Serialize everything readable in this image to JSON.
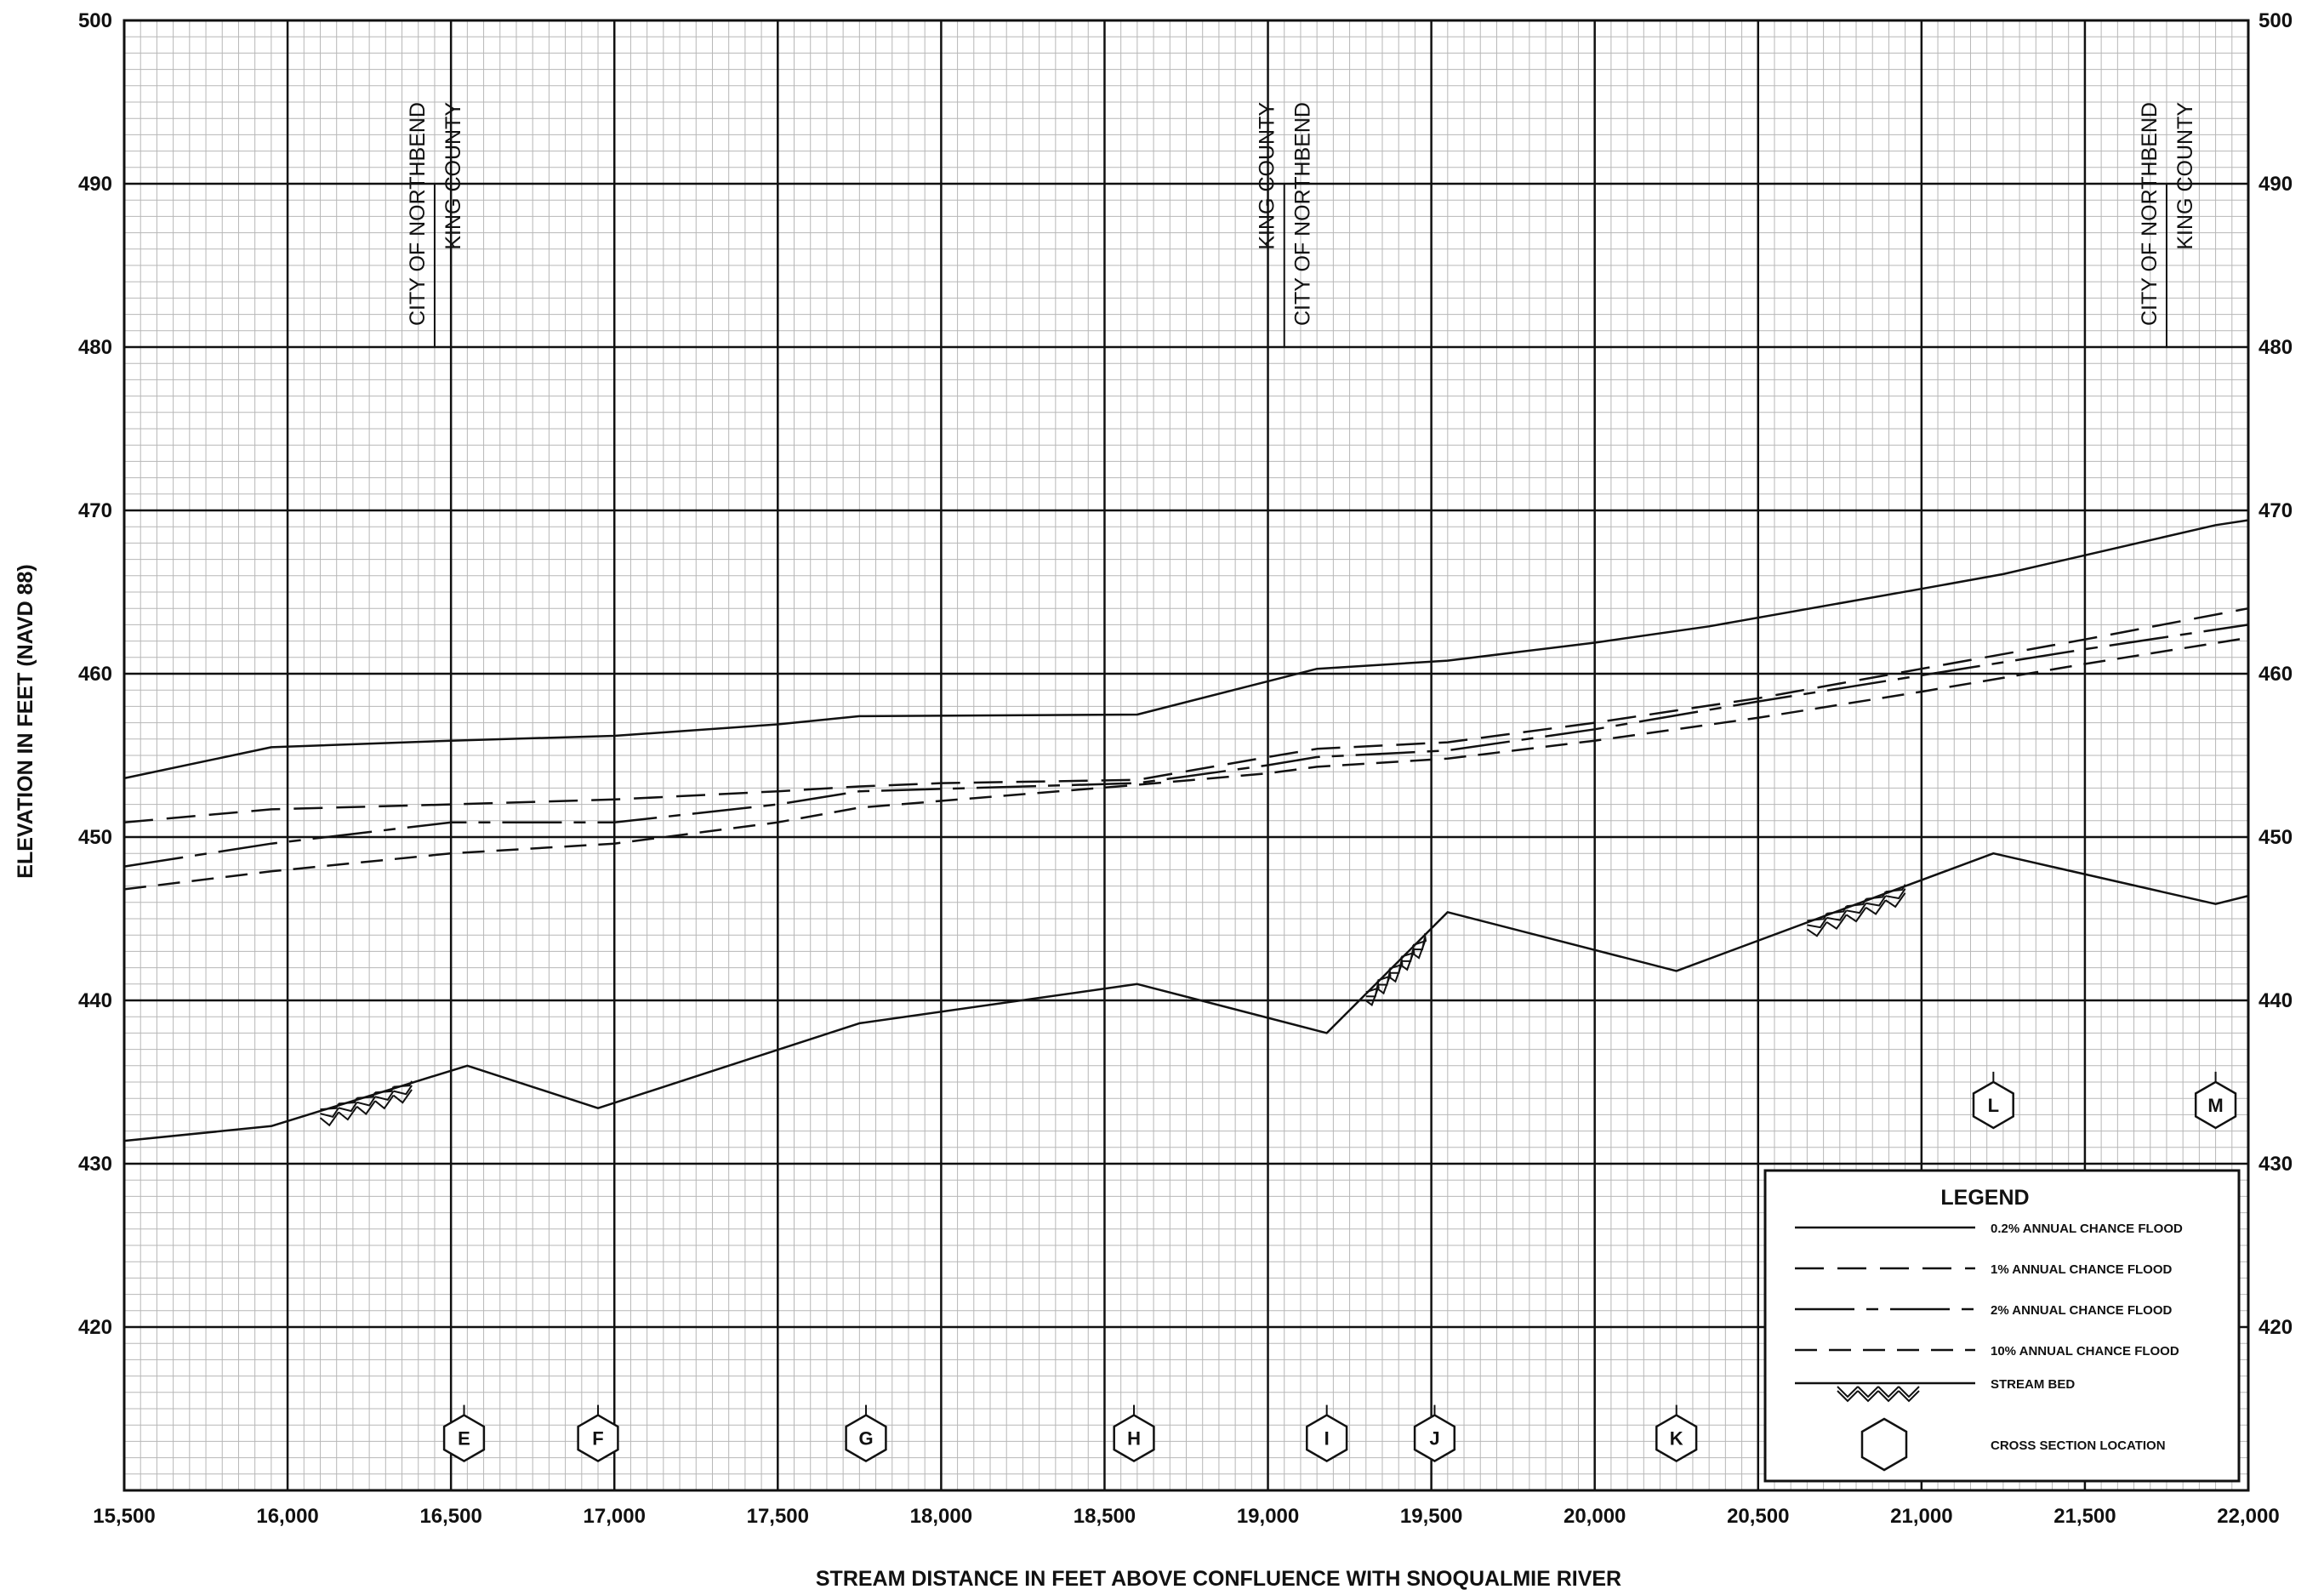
{
  "chart_data": {
    "type": "line",
    "title": "",
    "xlabel": "STREAM DISTANCE IN FEET ABOVE CONFLUENCE WITH SNOQUALMIE RIVER",
    "ylabel": "ELEVATION IN FEET (NAVD 88)",
    "xlim": [
      15500,
      22000
    ],
    "ylim": [
      410,
      500
    ],
    "grid": true,
    "x_ticks": [
      "15,500",
      "16,000",
      "16,500",
      "17,000",
      "17,500",
      "18,000",
      "18,500",
      "19,000",
      "19,500",
      "20,000",
      "20,500",
      "21,000",
      "21,500",
      "22,000"
    ],
    "y_ticks": [
      "420",
      "430",
      "440",
      "450",
      "460",
      "470",
      "480",
      "490",
      "500"
    ],
    "series": [
      {
        "name": "0.2% ANNUAL CHANCE FLOOD",
        "style": "solid",
        "points": [
          [
            15500,
            453.6
          ],
          [
            15950,
            455.5
          ],
          [
            16500,
            455.9
          ],
          [
            17000,
            456.2
          ],
          [
            17500,
            456.9
          ],
          [
            17750,
            457.4
          ],
          [
            18600,
            457.5
          ],
          [
            19150,
            460.3
          ],
          [
            19550,
            460.8
          ],
          [
            20000,
            461.9
          ],
          [
            20350,
            462.9
          ],
          [
            21000,
            465.2
          ],
          [
            21250,
            466.1
          ],
          [
            21900,
            469.1
          ],
          [
            22000,
            469.4
          ]
        ]
      },
      {
        "name": "1% ANNUAL CHANCE FLOOD",
        "style": "dashed",
        "points": [
          [
            15500,
            450.9
          ],
          [
            15950,
            451.7
          ],
          [
            16500,
            452.0
          ],
          [
            17000,
            452.3
          ],
          [
            17500,
            452.8
          ],
          [
            17750,
            453.1
          ],
          [
            18000,
            453.3
          ],
          [
            18600,
            453.5
          ],
          [
            19000,
            454.9
          ],
          [
            19150,
            455.4
          ],
          [
            19550,
            455.8
          ],
          [
            20000,
            457.0
          ],
          [
            20500,
            458.5
          ],
          [
            21000,
            460.3
          ],
          [
            21500,
            462.1
          ],
          [
            22000,
            464.0
          ]
        ]
      },
      {
        "name": "2% ANNUAL CHANCE FLOOD",
        "style": "dashdot",
        "points": [
          [
            15500,
            448.2
          ],
          [
            15950,
            449.6
          ],
          [
            16500,
            450.9
          ],
          [
            17000,
            450.9
          ],
          [
            17500,
            452.0
          ],
          [
            17750,
            452.8
          ],
          [
            18600,
            453.3
          ],
          [
            19000,
            454.4
          ],
          [
            19150,
            454.9
          ],
          [
            19550,
            455.3
          ],
          [
            20000,
            456.6
          ],
          [
            20500,
            458.3
          ],
          [
            21000,
            459.9
          ],
          [
            21500,
            461.5
          ],
          [
            22000,
            463.0
          ]
        ]
      },
      {
        "name": "10% ANNUAL CHANCE FLOOD",
        "style": "dashed-short",
        "points": [
          [
            15500,
            446.8
          ],
          [
            15950,
            447.9
          ],
          [
            16500,
            449.0
          ],
          [
            17000,
            449.6
          ],
          [
            17500,
            450.9
          ],
          [
            17750,
            451.8
          ],
          [
            18600,
            453.2
          ],
          [
            19000,
            453.9
          ],
          [
            19150,
            454.3
          ],
          [
            19550,
            454.8
          ],
          [
            20000,
            455.9
          ],
          [
            20500,
            457.3
          ],
          [
            21000,
            458.9
          ],
          [
            21500,
            460.6
          ],
          [
            22000,
            462.2
          ]
        ]
      },
      {
        "name": "STREAM BED",
        "style": "solid",
        "points": [
          [
            15500,
            431.4
          ],
          [
            15950,
            432.3
          ],
          [
            16550,
            436.0
          ],
          [
            16950,
            433.4
          ],
          [
            17750,
            438.6
          ],
          [
            18600,
            441.0
          ],
          [
            19180,
            438.0
          ],
          [
            19550,
            445.4
          ],
          [
            20250,
            441.8
          ],
          [
            21220,
            449.0
          ],
          [
            21900,
            445.9
          ],
          [
            22000,
            446.4
          ]
        ]
      }
    ],
    "stream_bed_hatches": [
      {
        "x1": 16100,
        "x2": 16380
      },
      {
        "x1": 19300,
        "x2": 19480
      },
      {
        "x1": 20650,
        "x2": 20950
      }
    ],
    "cross_sections": [
      {
        "label": "E",
        "x": 16540,
        "y": 413.2
      },
      {
        "label": "F",
        "x": 16950,
        "y": 413.2
      },
      {
        "label": "G",
        "x": 17770,
        "y": 413.2
      },
      {
        "label": "H",
        "x": 18590,
        "y": 413.2
      },
      {
        "label": "I",
        "x": 19180,
        "y": 413.2
      },
      {
        "label": "J",
        "x": 19510,
        "y": 413.2
      },
      {
        "label": "K",
        "x": 20250,
        "y": 413.2
      },
      {
        "label": "L",
        "x": 21220,
        "y": 433.6
      },
      {
        "label": "M",
        "x": 21900,
        "y": 433.6
      }
    ],
    "boundaries": [
      {
        "x": 16450,
        "left": "CITY OF NORTHBEND",
        "right": "KING COUNTY"
      },
      {
        "x": 19050,
        "left": "KING COUNTY",
        "right": "CITY OF NORTHBEND"
      },
      {
        "x": 21750,
        "left": "CITY OF NORTHBEND",
        "right": "KING COUNTY"
      }
    ],
    "legend": {
      "title": "LEGEND",
      "placement": "bottom-right",
      "items": [
        {
          "label": "0.2% ANNUAL CHANCE FLOOD",
          "symbol": "solid"
        },
        {
          "label": "1% ANNUAL CHANCE FLOOD",
          "symbol": "dashed"
        },
        {
          "label": "2% ANNUAL CHANCE FLOOD",
          "symbol": "dashdot"
        },
        {
          "label": "10% ANNUAL CHANCE FLOOD",
          "symbol": "dashed-short"
        },
        {
          "label": "STREAM BED",
          "symbol": "streambed"
        },
        {
          "label": "CROSS SECTION LOCATION",
          "symbol": "hexagon"
        }
      ]
    }
  }
}
